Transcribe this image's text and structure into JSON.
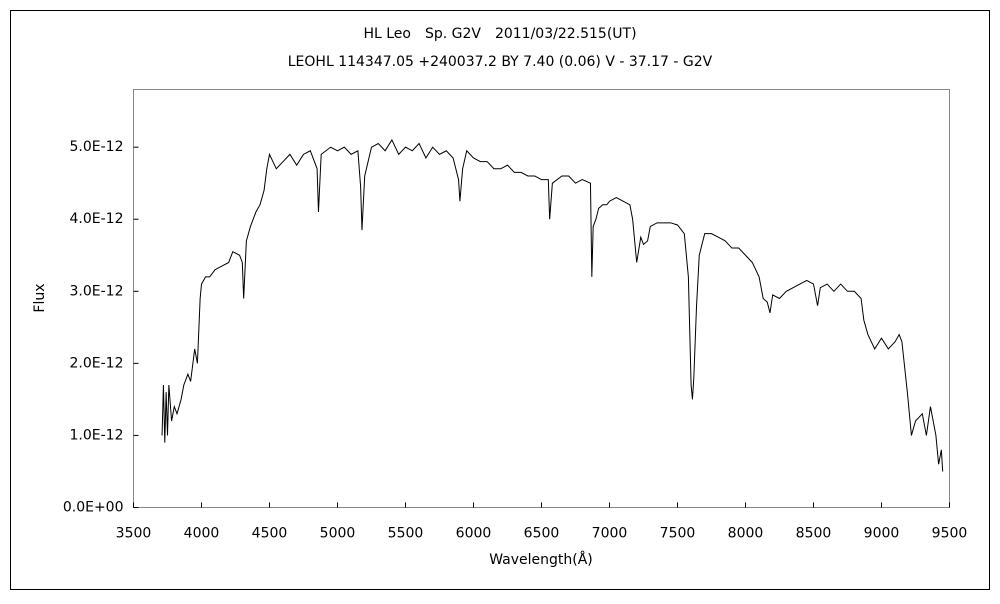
{
  "chart_data": {
    "type": "line",
    "title": "HL Leo　Sp. G2V　2011/03/22.515(UT)",
    "subtitle": "LEOHL 114347.05 +240037.2 BY 7.40 (0.06) V - 37.17 - G2V",
    "x_label": "Wavelength(Å)",
    "y_label": "Flux",
    "color": "#000000",
    "xlim": [
      3500,
      9500
    ],
    "xticks": [
      3500,
      4000,
      4500,
      5000,
      5500,
      6000,
      6500,
      7000,
      7500,
      8000,
      8500,
      9000,
      9500
    ],
    "ylim": [
      0,
      5.8e-12
    ],
    "yticks": [
      {
        "value": 0,
        "label": "0.0E+00"
      },
      {
        "value": 1e-12,
        "label": "1.0E-12"
      },
      {
        "value": 2e-12,
        "label": "2.0E-12"
      },
      {
        "value": 3e-12,
        "label": "3.0E-12"
      },
      {
        "value": 4e-12,
        "label": "4.0E-12"
      },
      {
        "value": 5e-12,
        "label": "5.0E-12"
      }
    ],
    "x": [
      3710,
      3720,
      3730,
      3740,
      3750,
      3760,
      3780,
      3800,
      3820,
      3850,
      3870,
      3900,
      3920,
      3950,
      3970,
      3990,
      4000,
      4030,
      4060,
      4100,
      4150,
      4200,
      4230,
      4280,
      4300,
      4310,
      4330,
      4360,
      4380,
      4400,
      4430,
      4460,
      4480,
      4500,
      4550,
      4600,
      4650,
      4700,
      4750,
      4800,
      4850,
      4860,
      4880,
      4950,
      5000,
      5050,
      5100,
      5150,
      5170,
      5180,
      5200,
      5250,
      5300,
      5350,
      5400,
      5450,
      5500,
      5550,
      5600,
      5650,
      5700,
      5750,
      5800,
      5850,
      5890,
      5900,
      5920,
      5950,
      6000,
      6050,
      6100,
      6150,
      6200,
      6250,
      6300,
      6350,
      6400,
      6450,
      6500,
      6550,
      6560,
      6580,
      6650,
      6700,
      6750,
      6800,
      6860,
      6870,
      6880,
      6900,
      6920,
      6950,
      6980,
      7000,
      7050,
      7100,
      7150,
      7170,
      7200,
      7230,
      7250,
      7280,
      7300,
      7350,
      7400,
      7450,
      7500,
      7550,
      7580,
      7600,
      7610,
      7620,
      7640,
      7660,
      7700,
      7750,
      7800,
      7850,
      7900,
      7950,
      8000,
      8050,
      8100,
      8130,
      8160,
      8180,
      8200,
      8250,
      8300,
      8350,
      8400,
      8450,
      8500,
      8530,
      8550,
      8600,
      8650,
      8700,
      8750,
      8800,
      8850,
      8870,
      8900,
      8950,
      9000,
      9050,
      9100,
      9130,
      9150,
      9190,
      9220,
      9250,
      9300,
      9330,
      9360,
      9400,
      9420,
      9440,
      9450
    ],
    "values": [
      1e-12,
      1.7e-12,
      9e-13,
      1.6e-12,
      1e-12,
      1.7e-12,
      1.2e-12,
      1.4e-12,
      1.3e-12,
      1.5e-12,
      1.7e-12,
      1.85e-12,
      1.75e-12,
      2.2e-12,
      2e-12,
      2.9e-12,
      3.1e-12,
      3.2e-12,
      3.2e-12,
      3.3e-12,
      3.35e-12,
      3.4e-12,
      3.55e-12,
      3.5e-12,
      3.4e-12,
      2.9e-12,
      3.7e-12,
      3.9e-12,
      4e-12,
      4.1e-12,
      4.2e-12,
      4.4e-12,
      4.7e-12,
      4.9e-12,
      4.7e-12,
      4.8e-12,
      4.9e-12,
      4.75e-12,
      4.9e-12,
      4.95e-12,
      4.7e-12,
      4.1e-12,
      4.9e-12,
      5e-12,
      4.95e-12,
      5e-12,
      4.9e-12,
      4.95e-12,
      4.45e-12,
      3.85e-12,
      4.6e-12,
      5e-12,
      5.05e-12,
      4.95e-12,
      5.1e-12,
      4.9e-12,
      5e-12,
      4.95e-12,
      5.05e-12,
      4.85e-12,
      5e-12,
      4.9e-12,
      4.95e-12,
      4.85e-12,
      4.55e-12,
      4.25e-12,
      4.7e-12,
      4.95e-12,
      4.85e-12,
      4.8e-12,
      4.8e-12,
      4.7e-12,
      4.7e-12,
      4.75e-12,
      4.65e-12,
      4.65e-12,
      4.6e-12,
      4.6e-12,
      4.55e-12,
      4.55e-12,
      4e-12,
      4.5e-12,
      4.6e-12,
      4.6e-12,
      4.5e-12,
      4.55e-12,
      4.5e-12,
      3.2e-12,
      3.9e-12,
      4e-12,
      4.15e-12,
      4.2e-12,
      4.2e-12,
      4.25e-12,
      4.3e-12,
      4.25e-12,
      4.2e-12,
      4e-12,
      3.4e-12,
      3.75e-12,
      3.65e-12,
      3.7e-12,
      3.9e-12,
      3.95e-12,
      3.95e-12,
      3.95e-12,
      3.92e-12,
      3.8e-12,
      3.2e-12,
      1.7e-12,
      1.5e-12,
      1.8e-12,
      2.8e-12,
      3.5e-12,
      3.8e-12,
      3.8e-12,
      3.75e-12,
      3.7e-12,
      3.6e-12,
      3.6e-12,
      3.5e-12,
      3.4e-12,
      3.2e-12,
      2.9e-12,
      2.85e-12,
      2.7e-12,
      2.95e-12,
      2.9e-12,
      3e-12,
      3.05e-12,
      3.1e-12,
      3.15e-12,
      3.1e-12,
      2.8e-12,
      3.05e-12,
      3.1e-12,
      3e-12,
      3.1e-12,
      3e-12,
      3e-12,
      2.9e-12,
      2.6e-12,
      2.4e-12,
      2.2e-12,
      2.35e-12,
      2.2e-12,
      2.3e-12,
      2.4e-12,
      2.3e-12,
      1.6e-12,
      1e-12,
      1.2e-12,
      1.3e-12,
      1e-12,
      1.4e-12,
      1e-12,
      6e-13,
      8e-13,
      5e-13
    ]
  }
}
